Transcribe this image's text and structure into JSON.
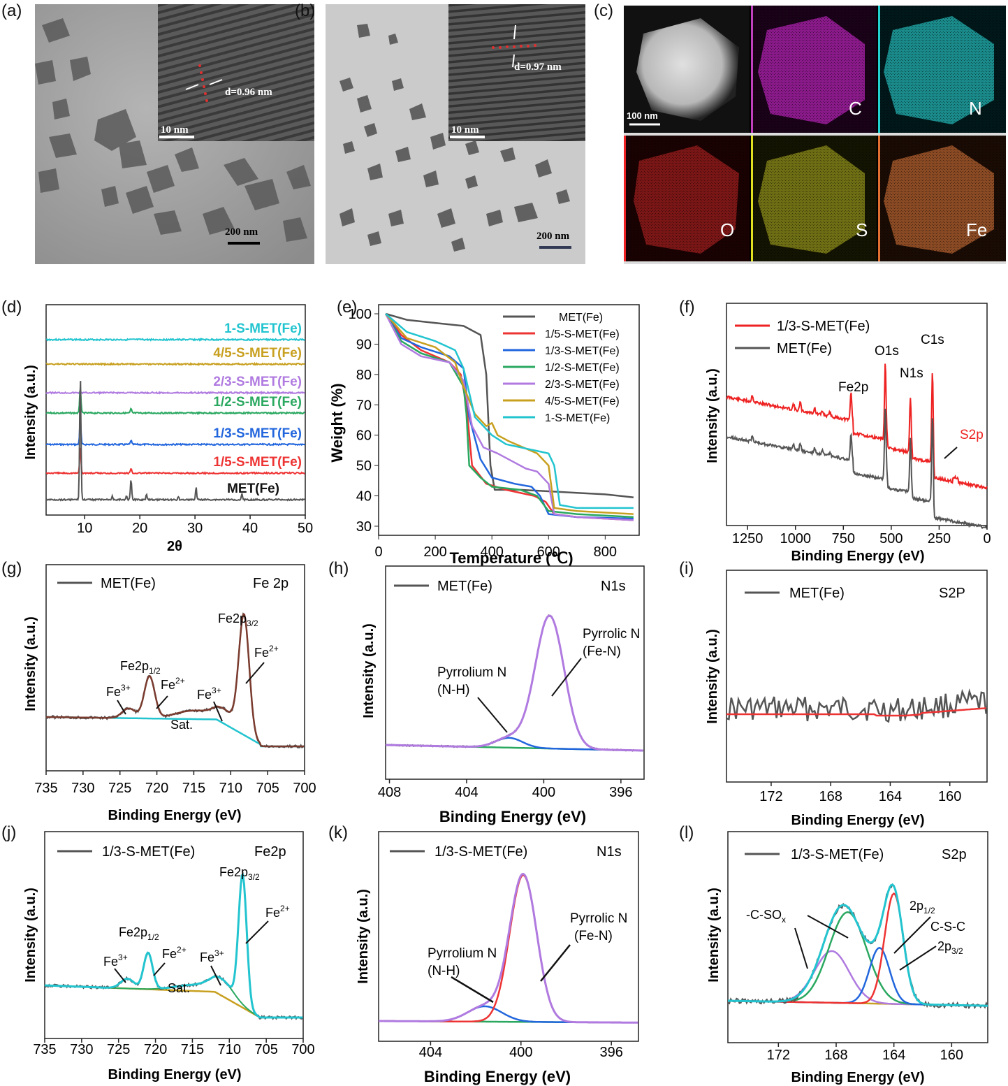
{
  "panels": {
    "a": {
      "label": "(a)",
      "scale_inset": "10 nm",
      "d_label": "d=0.96 nm",
      "scale_main": "200 nm"
    },
    "b": {
      "label": "(b)",
      "scale_inset": "10 nm",
      "d_label": "d=0.97 nm",
      "scale_main": "200 nm"
    },
    "c": {
      "label": "(c)",
      "scale": "100 nm",
      "maps": [
        "C",
        "N",
        "O",
        "S",
        "Fe"
      ]
    },
    "d": {
      "label": "(d)"
    },
    "e": {
      "label": "(e)"
    },
    "f": {
      "label": "(f)"
    },
    "g": {
      "label": "(g)"
    },
    "h": {
      "label": "(h)"
    },
    "i": {
      "label": "(i)"
    },
    "j": {
      "label": "(j)"
    },
    "k": {
      "label": "(k)"
    },
    "l": {
      "label": "(l)"
    }
  },
  "colors": {
    "cyan": "#22c4cf",
    "gold": "#c8a020",
    "purple": "#b07ae0",
    "green": "#2aa860",
    "blue": "#2266dd",
    "red": "#ee3333",
    "dark": "#555555",
    "brown": "#7a3b2e"
  },
  "chart_data": [
    {
      "id": "d",
      "type": "line",
      "xlabel": "2θ",
      "ylabel": "Intensity (a.u.)",
      "xlim": [
        3,
        50
      ],
      "xticks": [
        10,
        20,
        30,
        40,
        50
      ],
      "series": [
        {
          "name": "1-S-MET(Fe)",
          "color": "#22c4cf"
        },
        {
          "name": "4/5-S-MET(Fe)",
          "color": "#c8a020"
        },
        {
          "name": "2/3-S-MET(Fe)",
          "color": "#b07ae0"
        },
        {
          "name": "1/2-S-MET(Fe)",
          "color": "#2aa860"
        },
        {
          "name": "1/3-S-MET(Fe)",
          "color": "#2266dd"
        },
        {
          "name": "1/5-S-MET(Fe)",
          "color": "#ee3333"
        },
        {
          "name": "MET(Fe)",
          "color": "#555555"
        }
      ]
    },
    {
      "id": "e",
      "type": "line",
      "xlabel": "Temperature (℃)",
      "ylabel": "Weight (%)",
      "xlim": [
        0,
        920
      ],
      "ylim": [
        27,
        103
      ],
      "xticks": [
        0,
        200,
        400,
        600,
        800
      ],
      "yticks": [
        30,
        40,
        50,
        60,
        70,
        80,
        90,
        100
      ],
      "series": [
        {
          "name": "MET(Fe)",
          "color": "#555555",
          "x": [
            25,
            100,
            200,
            300,
            360,
            380,
            395,
            410,
            500,
            600,
            700,
            800,
            900
          ],
          "y": [
            100,
            98,
            97,
            96,
            93,
            80,
            50,
            42,
            42,
            41.5,
            41,
            40.5,
            39.5
          ]
        },
        {
          "name": "1/5-S-MET(Fe)",
          "color": "#ee3333",
          "x": [
            25,
            80,
            150,
            250,
            290,
            310,
            330,
            380,
            450,
            550,
            590,
            620,
            700,
            900
          ],
          "y": [
            100,
            93,
            88,
            84,
            80,
            70,
            50,
            44,
            42,
            40,
            38,
            34,
            33,
            32
          ]
        },
        {
          "name": "1/3-S-MET(Fe)",
          "color": "#2266dd",
          "x": [
            25,
            80,
            150,
            250,
            300,
            320,
            360,
            400,
            480,
            540,
            570,
            600,
            700,
            900
          ],
          "y": [
            100,
            92,
            89,
            86,
            82,
            66,
            52,
            46,
            44,
            43,
            40,
            34,
            33,
            32.5
          ]
        },
        {
          "name": "1/2-S-MET(Fe)",
          "color": "#2aa860",
          "x": [
            25,
            80,
            150,
            250,
            300,
            310,
            320,
            360,
            400,
            500,
            560,
            600,
            700,
            900
          ],
          "y": [
            100,
            91,
            87,
            84,
            76,
            67,
            50,
            46,
            43,
            42,
            40,
            35,
            34,
            33
          ]
        },
        {
          "name": "2/3-S-MET(Fe)",
          "color": "#b07ae0",
          "x": [
            25,
            80,
            150,
            250,
            300,
            330,
            370,
            420,
            480,
            520,
            560,
            600,
            620,
            700,
            900
          ],
          "y": [
            100,
            90,
            86,
            84,
            78,
            63,
            56,
            54,
            51,
            49,
            48,
            44,
            34,
            33,
            32
          ]
        },
        {
          "name": "4/5-S-MET(Fe)",
          "color": "#c8a020",
          "x": [
            25,
            100,
            200,
            270,
            300,
            340,
            380,
            400,
            420,
            460,
            560,
            600,
            620,
            700,
            900
          ],
          "y": [
            100,
            92,
            89,
            84,
            76,
            67,
            63,
            64,
            60,
            58,
            54,
            50,
            36,
            35,
            34
          ]
        },
        {
          "name": "1-S-MET(Fe)",
          "color": "#22c4cf",
          "x": [
            25,
            100,
            200,
            270,
            300,
            340,
            400,
            450,
            550,
            600,
            620,
            640,
            700,
            900
          ],
          "y": [
            100,
            94,
            91,
            88,
            82,
            66,
            60,
            57,
            55,
            54,
            50,
            37,
            36,
            36
          ]
        }
      ]
    },
    {
      "id": "f",
      "type": "line",
      "xlabel": "Binding Energy (eV)",
      "ylabel": "Intensity (a.u.)",
      "xticks": [
        1250,
        1000,
        750,
        500,
        250,
        0
      ],
      "series": [
        {
          "name": "1/3-S-MET(Fe)",
          "color": "#ee2222"
        },
        {
          "name": "MET(Fe)",
          "color": "#555555"
        }
      ],
      "annotations": [
        "Fe2p",
        "O1s",
        "N1s",
        "C1s",
        "S2p"
      ]
    },
    {
      "id": "g",
      "type": "line",
      "xlabel": "Binding Energy (eV)",
      "ylabel": "Intensity (a.u.)",
      "title": "Fe 2p",
      "xticks": [
        735,
        730,
        725,
        720,
        715,
        710,
        705,
        700
      ],
      "series": [
        {
          "name": "MET(Fe)",
          "color": "#555555"
        }
      ],
      "annotations": {
        "fe2p12": "Fe2p",
        "fe2p12_sub": "1/2",
        "fe2p32": "Fe2p",
        "fe2p32_sub": "3/2",
        "fe3a": "Fe",
        "fe3a_sup": "3+",
        "fe2a": "Fe",
        "fe2a_sup": "2+",
        "fe3b": "Fe",
        "fe3b_sup": "3+",
        "fe2b": "Fe",
        "fe2b_sup": "2+",
        "sat": "Sat."
      }
    },
    {
      "id": "h",
      "type": "line",
      "xlabel": "Binding  Energy (eV)",
      "ylabel": "Intensity (a.u.)",
      "title": "N1s",
      "xticks": [
        408,
        404,
        400,
        396
      ],
      "series": [
        {
          "name": "MET(Fe)",
          "color": "#555555"
        }
      ],
      "annotations": [
        "Pyrrolic N",
        "(Fe-N)",
        "Pyrrolium N",
        "(N-H)"
      ]
    },
    {
      "id": "i",
      "type": "line",
      "xlabel": "Binding Energy (eV)",
      "ylabel": "Intensity (a.u.)",
      "title": "S2P",
      "xticks": [
        172,
        168,
        164,
        160
      ],
      "series": [
        {
          "name": "MET(Fe)",
          "color": "#555555"
        }
      ]
    },
    {
      "id": "j",
      "type": "line",
      "xlabel": "Binding Energy (eV)",
      "ylabel": "Intensity (a.u.)",
      "title": "Fe2p",
      "xticks": [
        735,
        730,
        725,
        720,
        715,
        710,
        705,
        700
      ],
      "series": [
        {
          "name": "1/3-S-MET(Fe)",
          "color": "#555555"
        }
      ],
      "annotations": {
        "fe2p12": "Fe2p",
        "fe2p12_sub": "1/2",
        "fe2p32": "Fe2p",
        "fe2p32_sub": "3/2",
        "fe3a": "Fe",
        "fe3a_sup": "3+",
        "fe2a": "Fe",
        "fe2a_sup": "2+",
        "fe3b": "Fe",
        "fe3b_sup": "3+",
        "fe2b": "Fe",
        "fe2b_sup": "2+",
        "sat": "Sat."
      }
    },
    {
      "id": "k",
      "type": "line",
      "xlabel": "Binding  Energy (eV)",
      "ylabel": "Intensity (a.u.)",
      "title": "N1s",
      "xticks": [
        404,
        400,
        396
      ],
      "series": [
        {
          "name": "1/3-S-MET(Fe)",
          "color": "#555555"
        }
      ],
      "annotations": [
        "Pyrrolic N",
        "(Fe-N)",
        "Pyrrolium N",
        "(N-H)"
      ]
    },
    {
      "id": "l",
      "type": "line",
      "xlabel": "Binding Energy (eV)",
      "ylabel": "Intensity (a.u.)",
      "title": "S2p",
      "xticks": [
        172,
        168,
        164,
        160
      ],
      "series": [
        {
          "name": "1/3-S-MET(Fe)",
          "color": "#555555"
        }
      ],
      "annotations": {
        "csox": "-C-SO",
        "csox_sub": "x",
        "p12": "2p",
        "p12_sub": "1/2",
        "csc": "C-S-C",
        "p32": "2p",
        "p32_sub": "3/2"
      }
    }
  ]
}
